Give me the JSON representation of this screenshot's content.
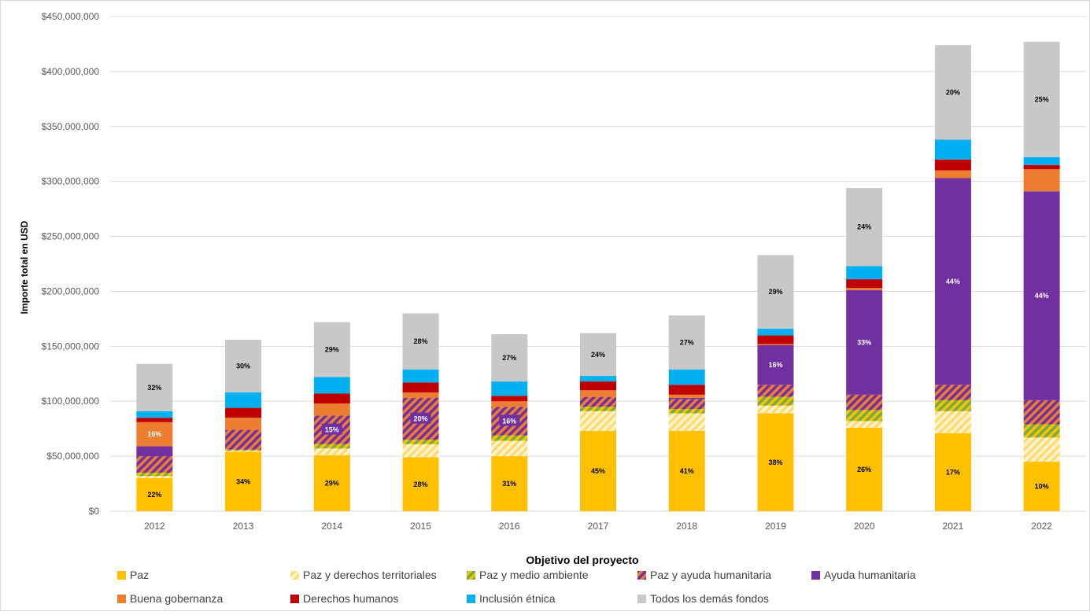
{
  "chart_data": {
    "type": "bar",
    "stacked": true,
    "xlabel": "",
    "ylabel": "Importe total en USD",
    "legend_title": "Objetivo del proyecto",
    "legend_position": "bottom",
    "ylim": [
      0,
      450000000
    ],
    "y_ticks": [
      {
        "value": 0,
        "label": "$0"
      },
      {
        "value": 50000000,
        "label": "$50,000,000"
      },
      {
        "value": 100000000,
        "label": "$100,000,000"
      },
      {
        "value": 150000000,
        "label": "$150,000,000"
      },
      {
        "value": 200000000,
        "label": "$200,000,000"
      },
      {
        "value": 250000000,
        "label": "$250,000,000"
      },
      {
        "value": 300000000,
        "label": "$300,000,000"
      },
      {
        "value": 350000000,
        "label": "$350,000,000"
      },
      {
        "value": 400000000,
        "label": "$400,000,000"
      },
      {
        "value": 450000000,
        "label": "$450,000,000"
      }
    ],
    "grid": true,
    "categories": [
      "2012",
      "2013",
      "2014",
      "2015",
      "2016",
      "2017",
      "2018",
      "2019",
      "2020",
      "2021",
      "2022"
    ],
    "series": [
      {
        "name": "Paz",
        "color": "#FFC000",
        "pattern": "solid",
        "values": [
          30000000,
          54000000,
          51000000,
          49000000,
          50000000,
          73000000,
          73000000,
          89000000,
          76000000,
          71000000,
          45000000
        ],
        "labels": [
          "22%",
          "34%",
          "29%",
          "28%",
          "31%",
          "45%",
          "41%",
          "38%",
          "26%",
          "17%",
          "10%"
        ],
        "label_color": "#000000"
      },
      {
        "name": "Paz y derechos territoriales",
        "color": "#FFC000",
        "pattern": "hatch-light",
        "values": [
          2000000,
          1000000,
          6000000,
          12000000,
          14000000,
          18000000,
          16000000,
          7000000,
          6000000,
          20000000,
          22000000
        ],
        "labels": [
          "",
          "",
          "",
          "",
          "",
          "",
          "",
          "",
          "",
          "",
          ""
        ]
      },
      {
        "name": "Paz y medio ambiente",
        "color": "#70AD47",
        "pattern": "hatch-green",
        "values": [
          3000000,
          1000000,
          4000000,
          4000000,
          5000000,
          4000000,
          4000000,
          8000000,
          10000000,
          10000000,
          12000000
        ],
        "labels": [
          "",
          "",
          "",
          "",
          "",
          "",
          "",
          "",
          "",
          "",
          ""
        ]
      },
      {
        "name": "Paz y ayuda humanitaria",
        "color": "#7030A0",
        "pattern": "hatch-purple",
        "values": [
          15000000,
          18000000,
          26000000,
          38000000,
          26000000,
          9000000,
          9000000,
          11000000,
          14000000,
          14000000,
          22000000
        ],
        "labels": [
          "",
          "",
          "15%",
          "20%",
          "16%",
          "",
          "",
          "",
          "",
          "",
          ""
        ],
        "label_color": "#FFFFFF"
      },
      {
        "name": "Ayuda humanitaria",
        "color": "#7030A0",
        "pattern": "solid",
        "values": [
          9000000,
          0,
          0,
          0,
          0,
          0,
          1000000,
          36000000,
          95000000,
          188000000,
          190000000
        ],
        "labels": [
          "",
          "",
          "",
          "",
          "",
          "",
          "",
          "16%",
          "33%",
          "44%",
          "44%"
        ],
        "label_color": "#FFFFFF"
      },
      {
        "name": "Buena gobernanza",
        "color": "#ED7D31",
        "pattern": "solid",
        "values": [
          22000000,
          11000000,
          11000000,
          5000000,
          5000000,
          6000000,
          3000000,
          1000000,
          2000000,
          7000000,
          20000000
        ],
        "labels": [
          "16%",
          "",
          "",
          "",
          "",
          "",
          "",
          "",
          "",
          "",
          ""
        ],
        "label_color": "#FFFFFF"
      },
      {
        "name": "Derechos humanos",
        "color": "#C00000",
        "pattern": "solid",
        "values": [
          4000000,
          9000000,
          9000000,
          9000000,
          5000000,
          8000000,
          9000000,
          8000000,
          8000000,
          10000000,
          4000000
        ],
        "labels": [
          "",
          "",
          "",
          "",
          "",
          "",
          "",
          "",
          "",
          "",
          ""
        ]
      },
      {
        "name": "Inclusión étnica",
        "color": "#00B0F0",
        "pattern": "solid",
        "values": [
          6000000,
          14000000,
          15000000,
          12000000,
          13000000,
          5000000,
          14000000,
          6000000,
          12000000,
          18000000,
          7000000
        ],
        "labels": [
          "",
          "",
          "",
          "",
          "",
          "",
          "",
          "",
          "",
          "",
          ""
        ]
      },
      {
        "name": "Todos los demás fondos",
        "color": "#C8C8C8",
        "pattern": "solid",
        "values": [
          43000000,
          48000000,
          50000000,
          51000000,
          43000000,
          39000000,
          49000000,
          67000000,
          71000000,
          86000000,
          105000000
        ],
        "labels": [
          "32%",
          "30%",
          "29%",
          "28%",
          "27%",
          "24%",
          "27%",
          "29%",
          "24%",
          "20%",
          "25%"
        ],
        "label_color": "#000000"
      }
    ]
  }
}
